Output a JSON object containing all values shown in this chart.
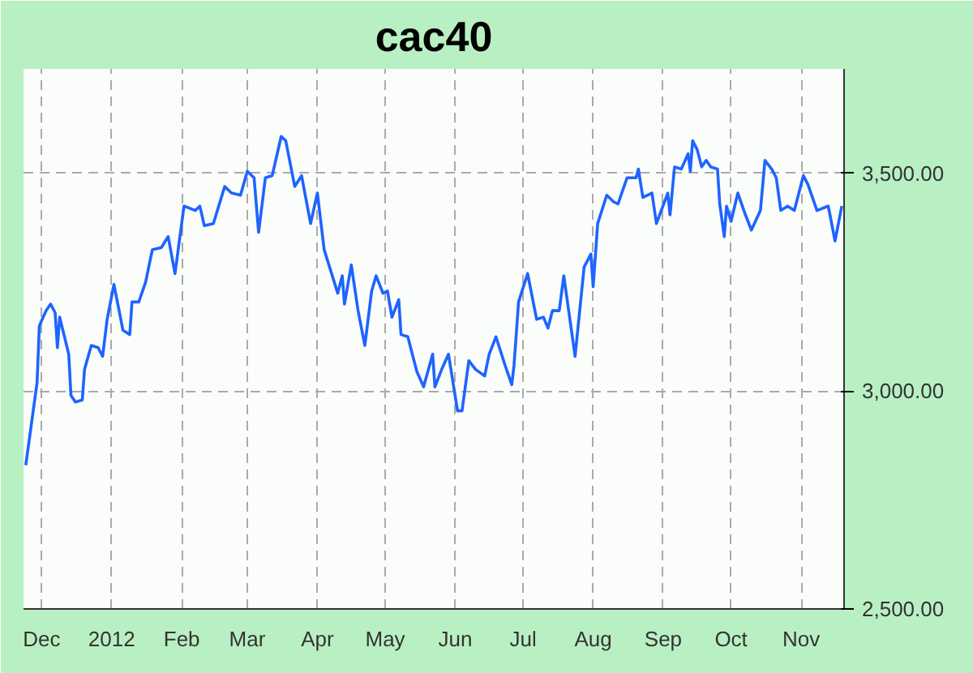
{
  "chart_data": {
    "type": "line",
    "title": "cac40",
    "x": [
      "2011-11-24",
      "2011-11-29",
      "2011-11-30",
      "2011-12-03",
      "2011-12-05",
      "2011-12-07",
      "2011-12-08",
      "2011-12-09",
      "2011-12-13",
      "2011-12-14",
      "2011-12-16",
      "2011-12-19",
      "2011-12-20",
      "2011-12-23",
      "2011-12-26",
      "2011-12-28",
      "2011-12-30",
      "2012-01-02",
      "2012-01-06",
      "2012-01-09",
      "2012-01-10",
      "2012-01-13",
      "2012-01-16",
      "2012-01-19",
      "2012-01-23",
      "2012-01-26",
      "2012-01-29",
      "2012-02-02",
      "2012-02-07",
      "2012-02-09",
      "2012-02-11",
      "2012-02-15",
      "2012-02-20",
      "2012-02-23",
      "2012-02-27",
      "2012-03-01",
      "2012-03-04",
      "2012-03-06",
      "2012-03-09",
      "2012-03-12",
      "2012-03-16",
      "2012-03-18",
      "2012-03-22",
      "2012-03-25",
      "2012-03-29",
      "2012-04-01",
      "2012-04-04",
      "2012-04-10",
      "2012-04-12",
      "2012-04-13",
      "2012-04-16",
      "2012-04-19",
      "2012-04-22",
      "2012-04-25",
      "2012-04-27",
      "2012-04-30",
      "2012-05-02",
      "2012-05-04",
      "2012-05-07",
      "2012-05-08",
      "2012-05-11",
      "2012-05-15",
      "2012-05-18",
      "2012-05-22",
      "2012-05-23",
      "2012-05-26",
      "2012-05-29",
      "2012-05-31",
      "2012-06-02",
      "2012-06-04",
      "2012-06-07",
      "2012-06-10",
      "2012-06-14",
      "2012-06-16",
      "2012-06-19",
      "2012-06-23",
      "2012-06-26",
      "2012-06-27",
      "2012-06-29",
      "2012-07-03",
      "2012-07-07",
      "2012-07-10",
      "2012-07-12",
      "2012-07-14",
      "2012-07-17",
      "2012-07-19",
      "2012-07-24",
      "2012-07-28",
      "2012-07-31",
      "2012-08-01",
      "2012-08-03",
      "2012-08-07",
      "2012-08-10",
      "2012-08-12",
      "2012-08-16",
      "2012-08-20",
      "2012-08-21",
      "2012-08-23",
      "2012-08-27",
      "2012-08-29",
      "2012-09-03",
      "2012-09-04",
      "2012-09-06",
      "2012-09-09",
      "2012-09-12",
      "2012-09-13",
      "2012-09-14",
      "2012-09-16",
      "2012-09-18",
      "2012-09-20",
      "2012-09-22",
      "2012-09-25",
      "2012-09-26",
      "2012-09-28",
      "2012-09-29",
      "2012-10-01",
      "2012-10-04",
      "2012-10-07",
      "2012-10-10",
      "2012-10-14",
      "2012-10-16",
      "2012-10-19",
      "2012-10-21",
      "2012-10-23",
      "2012-10-26",
      "2012-10-29",
      "2012-11-02",
      "2012-11-04",
      "2012-11-08",
      "2012-11-13",
      "2012-11-16",
      "2012-11-19"
    ],
    "series": [
      {
        "color": "#1e64ff",
        "values": [
          2830,
          3020,
          3150,
          3185,
          3200,
          3180,
          3100,
          3170,
          3085,
          2990,
          2975,
          2980,
          3050,
          3105,
          3100,
          3080,
          3165,
          3245,
          3140,
          3130,
          3205,
          3205,
          3250,
          3325,
          3330,
          3355,
          3270,
          3425,
          3415,
          3425,
          3380,
          3385,
          3470,
          3455,
          3450,
          3505,
          3490,
          3365,
          3490,
          3495,
          3585,
          3575,
          3470,
          3495,
          3385,
          3455,
          3325,
          3225,
          3265,
          3200,
          3290,
          3185,
          3105,
          3230,
          3265,
          3225,
          3230,
          3170,
          3210,
          3130,
          3125,
          3045,
          3010,
          3085,
          3010,
          3050,
          3085,
          3020,
          2955,
          2955,
          3070,
          3050,
          3035,
          3085,
          3125,
          3060,
          3015,
          3060,
          3205,
          3270,
          3165,
          3170,
          3145,
          3185,
          3185,
          3265,
          3080,
          3285,
          3315,
          3240,
          3385,
          3450,
          3435,
          3430,
          3490,
          3490,
          3510,
          3445,
          3455,
          3385,
          3455,
          3405,
          3515,
          3510,
          3545,
          3505,
          3575,
          3555,
          3515,
          3530,
          3515,
          3510,
          3430,
          3355,
          3425,
          3390,
          3455,
          3410,
          3370,
          3415,
          3530,
          3510,
          3490,
          3415,
          3425,
          3415,
          3495,
          3475,
          3415,
          3425,
          3345,
          3425
        ]
      }
    ],
    "xlim": [
      "2011-11-23",
      "2012-11-20"
    ],
    "xticks": [
      {
        "value": "2011-12-01",
        "label": "Dec"
      },
      {
        "value": "2012-01-01",
        "label": "2012"
      },
      {
        "value": "2012-02-01",
        "label": "Feb"
      },
      {
        "value": "2012-03-01",
        "label": "Mar"
      },
      {
        "value": "2012-04-01",
        "label": "Apr"
      },
      {
        "value": "2012-05-01",
        "label": "May"
      },
      {
        "value": "2012-06-01",
        "label": "Jun"
      },
      {
        "value": "2012-07-01",
        "label": "Jul"
      },
      {
        "value": "2012-08-01",
        "label": "Aug"
      },
      {
        "value": "2012-09-01",
        "label": "Sep"
      },
      {
        "value": "2012-10-01",
        "label": "Oct"
      },
      {
        "value": "2012-11-01",
        "label": "Nov"
      }
    ],
    "ylim": [
      2500,
      3740
    ],
    "yticks": [
      {
        "value": 2500,
        "label": "2,500.00"
      },
      {
        "value": 3000,
        "label": "3,000.00"
      },
      {
        "value": 3500,
        "label": "3,500.00"
      }
    ],
    "grid": true
  }
}
